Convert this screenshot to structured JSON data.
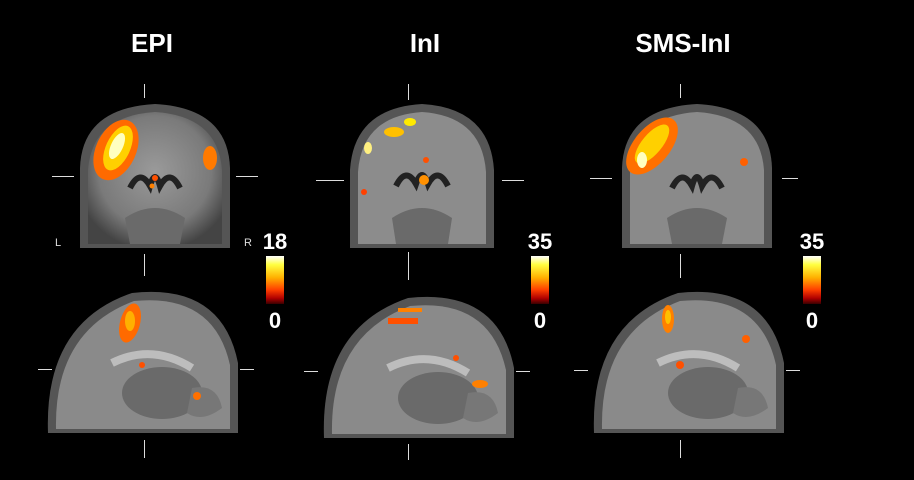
{
  "columns": [
    {
      "title": "EPI",
      "scale_max": "18",
      "scale_min": "0"
    },
    {
      "title": "InI",
      "scale_max": "35",
      "scale_min": "0"
    },
    {
      "title": "SMS-InI",
      "scale_max": "35",
      "scale_min": "0"
    }
  ],
  "orientation": {
    "left": "L",
    "right": "R"
  },
  "colormap": "hot (dark red → yellow → white)",
  "views": [
    "coronal",
    "sagittal"
  ]
}
